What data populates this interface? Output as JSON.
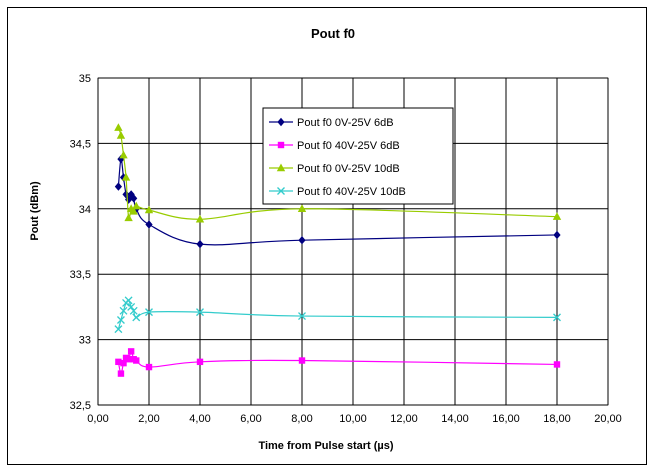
{
  "chart_data": {
    "type": "line",
    "title": "Pout f0",
    "xlabel": "Time from Pulse start (µs)",
    "ylabel": "Pout (dBm)",
    "xlim": [
      0,
      20
    ],
    "ylim": [
      32.5,
      35
    ],
    "xticks": [
      "0,00",
      "2,00",
      "4,00",
      "6,00",
      "8,00",
      "10,00",
      "12,00",
      "14,00",
      "16,00",
      "18,00",
      "20,00"
    ],
    "yticks": [
      "32,5",
      "33",
      "33,5",
      "34",
      "34,5",
      "35"
    ],
    "grid": true,
    "legend_position": "top-center",
    "series": [
      {
        "name": "Pout f0 0V-25V 6dB",
        "color": "#000080",
        "marker": "diamond",
        "x": [
          0.8,
          0.9,
          1.0,
          1.1,
          1.2,
          1.3,
          1.4,
          1.5,
          2.0,
          4.0,
          8.0,
          18.0
        ],
        "y": [
          34.17,
          34.38,
          34.24,
          34.11,
          34.07,
          34.11,
          34.08,
          34.0,
          33.88,
          33.73,
          33.76,
          33.8
        ]
      },
      {
        "name": "Pout f0 40V-25V 6dB",
        "color": "#FF00FF",
        "marker": "square",
        "x": [
          0.8,
          0.9,
          1.0,
          1.1,
          1.2,
          1.3,
          1.4,
          1.5,
          2.0,
          4.0,
          8.0,
          18.0
        ],
        "y": [
          32.83,
          32.74,
          32.82,
          32.86,
          32.85,
          32.91,
          32.85,
          32.84,
          32.79,
          32.83,
          32.84,
          32.81
        ]
      },
      {
        "name": "Pout f0 0V-25V 10dB",
        "color": "#99CC00",
        "marker": "triangle",
        "x": [
          0.8,
          0.9,
          1.0,
          1.1,
          1.2,
          1.3,
          1.4,
          1.5,
          2.0,
          4.0,
          8.0,
          18.0
        ],
        "y": [
          34.62,
          34.56,
          34.41,
          34.24,
          33.93,
          34.0,
          33.98,
          34.02,
          33.99,
          33.92,
          34.0,
          33.94
        ]
      },
      {
        "name": "Pout f0 40V-25V 10dB",
        "color": "#33CCCC",
        "marker": "x",
        "x": [
          0.8,
          0.9,
          1.0,
          1.1,
          1.2,
          1.3,
          1.4,
          1.5,
          2.0,
          4.0,
          8.0,
          18.0
        ],
        "y": [
          33.08,
          33.15,
          33.22,
          33.28,
          33.3,
          33.25,
          33.22,
          33.17,
          33.21,
          33.21,
          33.18,
          33.17
        ]
      }
    ]
  }
}
